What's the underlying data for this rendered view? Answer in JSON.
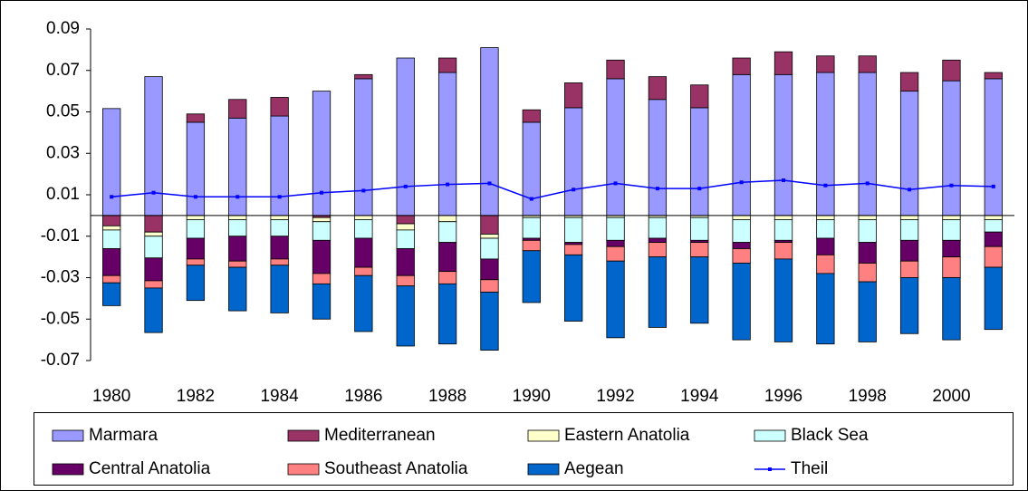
{
  "chart_data": {
    "type": "bar",
    "stacked": true,
    "legend": "bottom",
    "categories": [
      "1980",
      null,
      "1982",
      null,
      "1984",
      null,
      "1986",
      null,
      "1988",
      null,
      "1990",
      null,
      "1992",
      null,
      "1994",
      null,
      "1996",
      null,
      "1998",
      null,
      "2000",
      null
    ],
    "ylim": [
      -0.07,
      0.09
    ],
    "yticks": [
      0.09,
      0.07,
      0.05,
      0.03,
      0.01,
      -0.01,
      -0.03,
      -0.05,
      -0.07
    ],
    "grid": false,
    "series": [
      {
        "name": "Marmara",
        "color": "#9999ff",
        "values": [
          0.0516,
          0.067,
          0.045,
          0.047,
          0.048,
          0.06,
          0.066,
          0.076,
          0.069,
          0.081,
          0.045,
          0.052,
          0.066,
          0.056,
          0.052,
          0.068,
          0.068,
          0.069,
          0.069,
          0.06,
          0.065,
          0.066
        ]
      },
      {
        "name": "Mediterranean",
        "color": "#993366",
        "values": [
          -0.005,
          -0.008,
          0.004,
          0.009,
          0.009,
          -0.001,
          0.002,
          -0.004,
          0.007,
          -0.009,
          0.006,
          0.012,
          0.009,
          0.011,
          0.011,
          0.008,
          0.011,
          0.008,
          0.008,
          0.009,
          0.01,
          0.003
        ]
      },
      {
        "name": "Eastern Anatolia",
        "color": "#ffffcc",
        "values": [
          -0.002,
          -0.002,
          -0.002,
          -0.002,
          -0.002,
          -0.002,
          -0.002,
          -0.003,
          -0.003,
          -0.002,
          -0.001,
          -0.001,
          -0.001,
          -0.001,
          -0.001,
          -0.002,
          -0.002,
          -0.002,
          -0.002,
          -0.002,
          -0.002,
          -0.002
        ]
      },
      {
        "name": "Black Sea",
        "color": "#ccffff",
        "values": [
          -0.009,
          -0.0105,
          -0.009,
          -0.008,
          -0.008,
          -0.009,
          -0.009,
          -0.009,
          -0.01,
          -0.01,
          -0.01,
          -0.012,
          -0.011,
          -0.01,
          -0.011,
          -0.011,
          -0.01,
          -0.009,
          -0.011,
          -0.01,
          -0.01,
          -0.006
        ]
      },
      {
        "name": "Central Anatolia",
        "color": "#660066",
        "values": [
          -0.013,
          -0.011,
          -0.01,
          -0.012,
          -0.011,
          -0.016,
          -0.014,
          -0.013,
          -0.014,
          -0.01,
          -0.001,
          -0.001,
          -0.003,
          -0.002,
          -0.001,
          -0.003,
          -0.001,
          -0.008,
          -0.01,
          -0.01,
          -0.008,
          -0.007
        ]
      },
      {
        "name": "Southeast Anatolia",
        "color": "#ff8080",
        "values": [
          -0.0035,
          -0.0035,
          -0.003,
          -0.003,
          -0.003,
          -0.005,
          -0.004,
          -0.005,
          -0.006,
          -0.006,
          -0.005,
          -0.005,
          -0.007,
          -0.007,
          -0.007,
          -0.007,
          -0.008,
          -0.009,
          -0.009,
          -0.008,
          -0.01,
          -0.01
        ]
      },
      {
        "name": "Aegean",
        "color": "#0066cc",
        "values": [
          -0.011,
          -0.0215,
          -0.017,
          -0.021,
          -0.023,
          -0.017,
          -0.027,
          -0.029,
          -0.029,
          -0.028,
          -0.025,
          -0.032,
          -0.037,
          -0.034,
          -0.032,
          -0.037,
          -0.04,
          -0.034,
          -0.029,
          -0.027,
          -0.03,
          -0.03
        ]
      },
      {
        "name": "Theil",
        "color": "#0000ff",
        "type": "line",
        "values": [
          0.009,
          0.011,
          0.009,
          0.009,
          0.009,
          0.011,
          0.012,
          0.014,
          0.015,
          0.0155,
          0.008,
          0.0125,
          0.0155,
          0.013,
          0.013,
          0.016,
          0.017,
          0.0145,
          0.0155,
          0.0125,
          0.0145,
          0.014
        ]
      }
    ]
  }
}
